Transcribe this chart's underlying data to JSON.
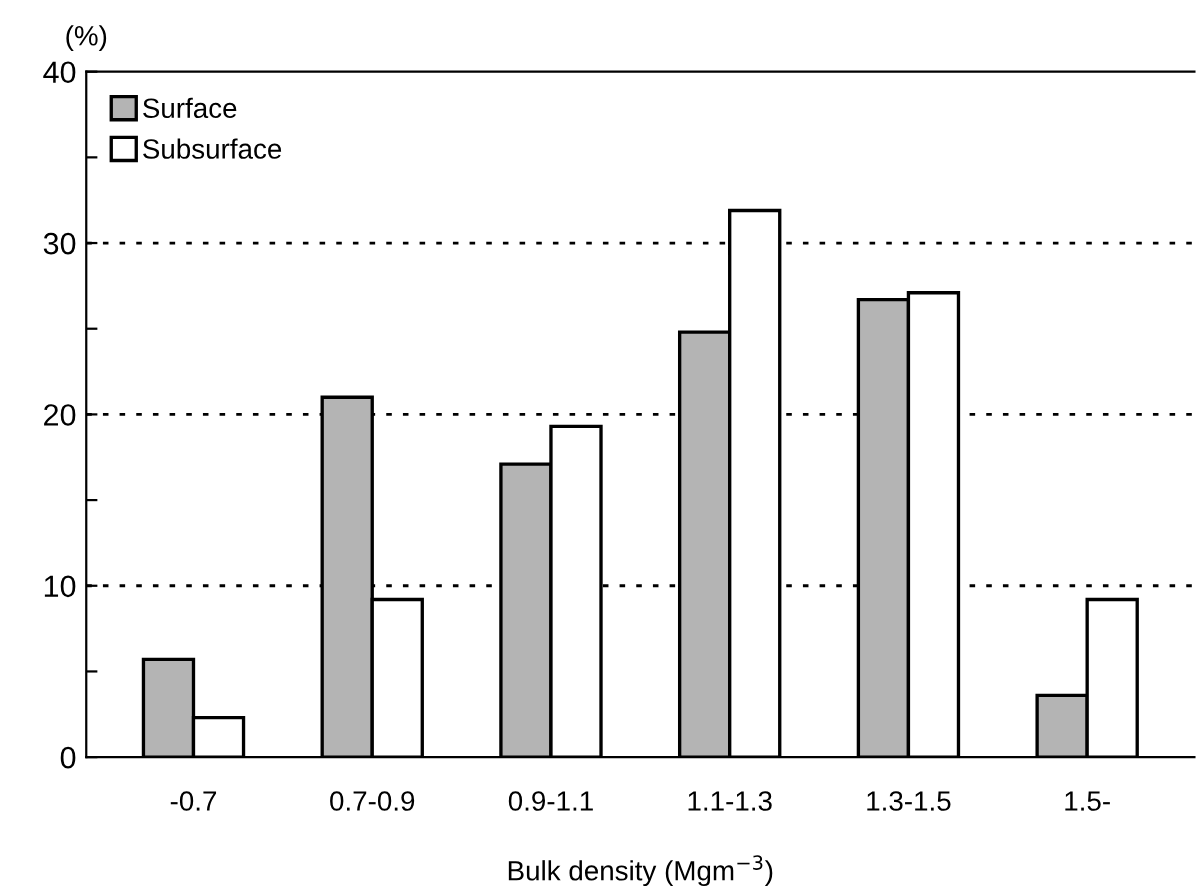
{
  "chart_data": {
    "type": "bar",
    "ylabel": "(%)",
    "xlabel": "Bulk density (Mgm$^{−3}$)",
    "categories": [
      "-0.7",
      "0.7-0.9",
      "0.9-1.1",
      "1.1-1.3",
      "1.3-1.5",
      "1.5-"
    ],
    "series": [
      {
        "name": "Surface",
        "color": "#b4b4b4",
        "values": [
          5.7,
          21.0,
          17.1,
          24.8,
          26.7,
          3.6
        ]
      },
      {
        "name": "Subsurface",
        "color": "#ffffff",
        "values": [
          2.3,
          9.2,
          19.3,
          31.9,
          27.1,
          9.2
        ]
      }
    ],
    "ylim": [
      0,
      40
    ],
    "yticks": [
      0,
      {
        "value": 5,
        "label": null
      },
      10,
      {
        "value": 15,
        "label": null
      },
      20,
      {
        "value": 25,
        "label": null
      },
      30,
      {
        "value": 35,
        "label": null
      },
      40
    ],
    "grid": "y",
    "legend": "top left"
  }
}
